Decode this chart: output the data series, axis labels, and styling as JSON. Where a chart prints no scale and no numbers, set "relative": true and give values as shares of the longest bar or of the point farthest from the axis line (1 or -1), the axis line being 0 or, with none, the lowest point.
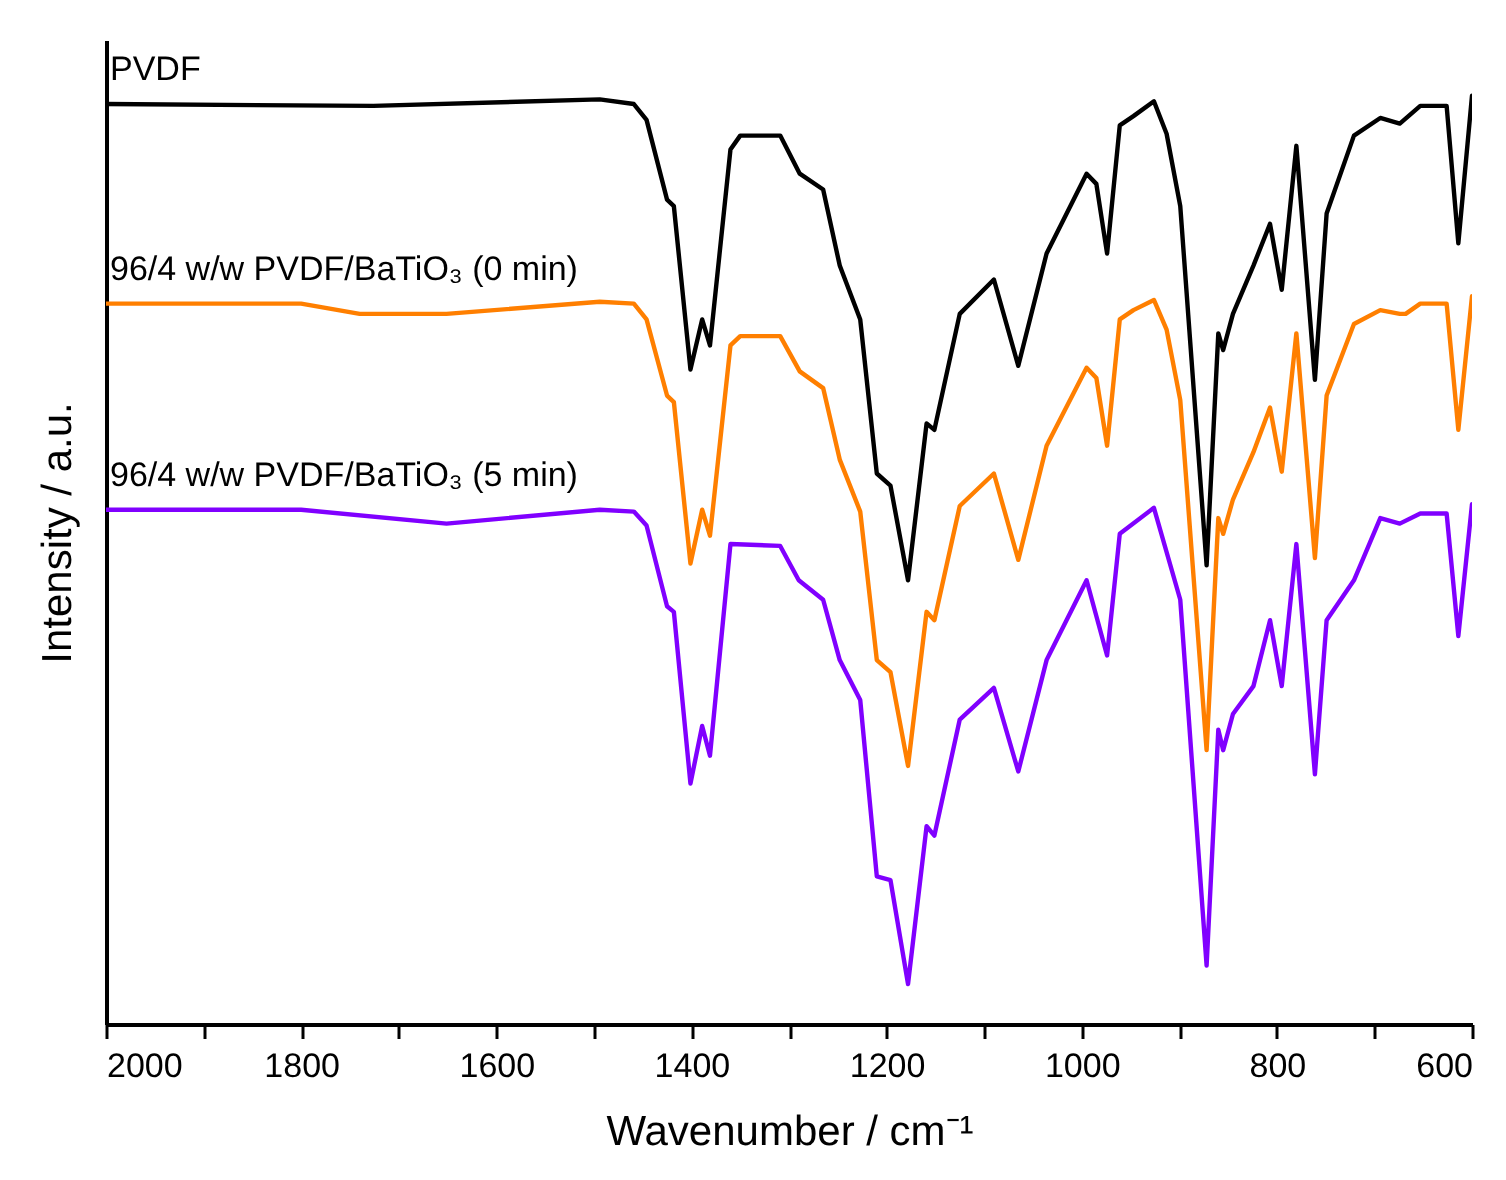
{
  "chart_data": {
    "type": "line",
    "xlabel": "Wavenumber / cm⁻¹",
    "ylabel": "Intensity / a.u.",
    "relative": true,
    "tick_labels": "x",
    "xlim": [
      2000,
      600
    ],
    "xticks": [
      2000,
      {
        "value": 1900,
        "label": null
      },
      1800,
      {
        "value": 1700,
        "label": null
      },
      1600,
      {
        "value": 1500,
        "label": null
      },
      1400,
      {
        "value": 1300,
        "label": null
      },
      1200,
      {
        "value": 1100,
        "label": null
      },
      1000,
      {
        "value": 900,
        "label": null
      },
      800,
      {
        "value": 700,
        "label": null
      },
      600
    ],
    "series": [
      {
        "name": "PVDF",
        "color": "#000000",
        "x": [
          2000,
          1726,
          1494,
          1459,
          1446,
          1425,
          1418,
          1401,
          1389,
          1381,
          1360,
          1350,
          1309,
          1289,
          1265,
          1248,
          1227,
          1210,
          1196,
          1178,
          1159,
          1151,
          1125,
          1090,
          1065,
          1036,
          995,
          985,
          974,
          961,
          947,
          926,
          913,
          899,
          872,
          860,
          855,
          845,
          824,
          807,
          795,
          780,
          761,
          749,
          721,
          694,
          674,
          653,
          626,
          614,
          600
        ],
        "values": [
          0.991,
          0.989,
          0.996,
          0.991,
          0.974,
          0.888,
          0.881,
          0.705,
          0.759,
          0.731,
          0.942,
          0.957,
          0.957,
          0.916,
          0.899,
          0.817,
          0.759,
          0.593,
          0.58,
          0.478,
          0.647,
          0.64,
          0.765,
          0.802,
          0.709,
          0.83,
          0.916,
          0.905,
          0.83,
          0.968,
          0.978,
          0.994,
          0.959,
          0.881,
          0.494,
          0.744,
          0.726,
          0.765,
          0.817,
          0.862,
          0.791,
          0.946,
          0.694,
          0.873,
          0.957,
          0.976,
          0.97,
          0.989,
          0.989,
          0.841,
          1.0
        ]
      },
      {
        "name": "96/4 w/w PVDF/BaTiO₃ (0 min)",
        "color": "#ff7f00",
        "x": [
          2000,
          1800,
          1740,
          1651,
          1494,
          1459,
          1446,
          1425,
          1418,
          1401,
          1389,
          1381,
          1360,
          1350,
          1309,
          1289,
          1265,
          1248,
          1227,
          1210,
          1196,
          1178,
          1159,
          1151,
          1125,
          1090,
          1065,
          1036,
          995,
          985,
          974,
          961,
          947,
          926,
          913,
          899,
          872,
          860,
          855,
          845,
          824,
          807,
          795,
          780,
          761,
          749,
          721,
          694,
          674,
          668,
          653,
          626,
          614,
          600
        ],
        "values": [
          0.776,
          0.776,
          0.765,
          0.765,
          0.778,
          0.776,
          0.759,
          0.677,
          0.67,
          0.496,
          0.554,
          0.526,
          0.731,
          0.741,
          0.741,
          0.703,
          0.685,
          0.608,
          0.552,
          0.392,
          0.379,
          0.278,
          0.444,
          0.435,
          0.558,
          0.593,
          0.5,
          0.623,
          0.707,
          0.696,
          0.623,
          0.759,
          0.769,
          0.78,
          0.748,
          0.672,
          0.295,
          0.545,
          0.528,
          0.565,
          0.616,
          0.664,
          0.595,
          0.744,
          0.502,
          0.677,
          0.754,
          0.769,
          0.765,
          0.765,
          0.776,
          0.776,
          0.64,
          0.784
        ]
      },
      {
        "name": "96/4 w/w PVDF/BaTiO₃ (5 min)",
        "color": "#8000ff",
        "x": [
          2000,
          1800,
          1651,
          1494,
          1459,
          1446,
          1425,
          1418,
          1401,
          1389,
          1381,
          1360,
          1309,
          1290,
          1265,
          1248,
          1227,
          1210,
          1196,
          1178,
          1159,
          1151,
          1125,
          1090,
          1065,
          1036,
          995,
          974,
          961,
          926,
          899,
          872,
          860,
          855,
          845,
          824,
          807,
          795,
          780,
          761,
          749,
          721,
          694,
          674,
          653,
          626,
          614,
          600
        ],
        "values": [
          0.554,
          0.554,
          0.539,
          0.554,
          0.552,
          0.537,
          0.45,
          0.444,
          0.259,
          0.321,
          0.289,
          0.517,
          0.515,
          0.478,
          0.457,
          0.392,
          0.349,
          0.159,
          0.155,
          0.043,
          0.213,
          0.203,
          0.328,
          0.362,
          0.272,
          0.392,
          0.478,
          0.397,
          0.528,
          0.556,
          0.457,
          0.063,
          0.317,
          0.295,
          0.334,
          0.364,
          0.435,
          0.364,
          0.517,
          0.269,
          0.435,
          0.478,
          0.545,
          0.539,
          0.55,
          0.55,
          0.418,
          0.56
        ]
      }
    ]
  }
}
